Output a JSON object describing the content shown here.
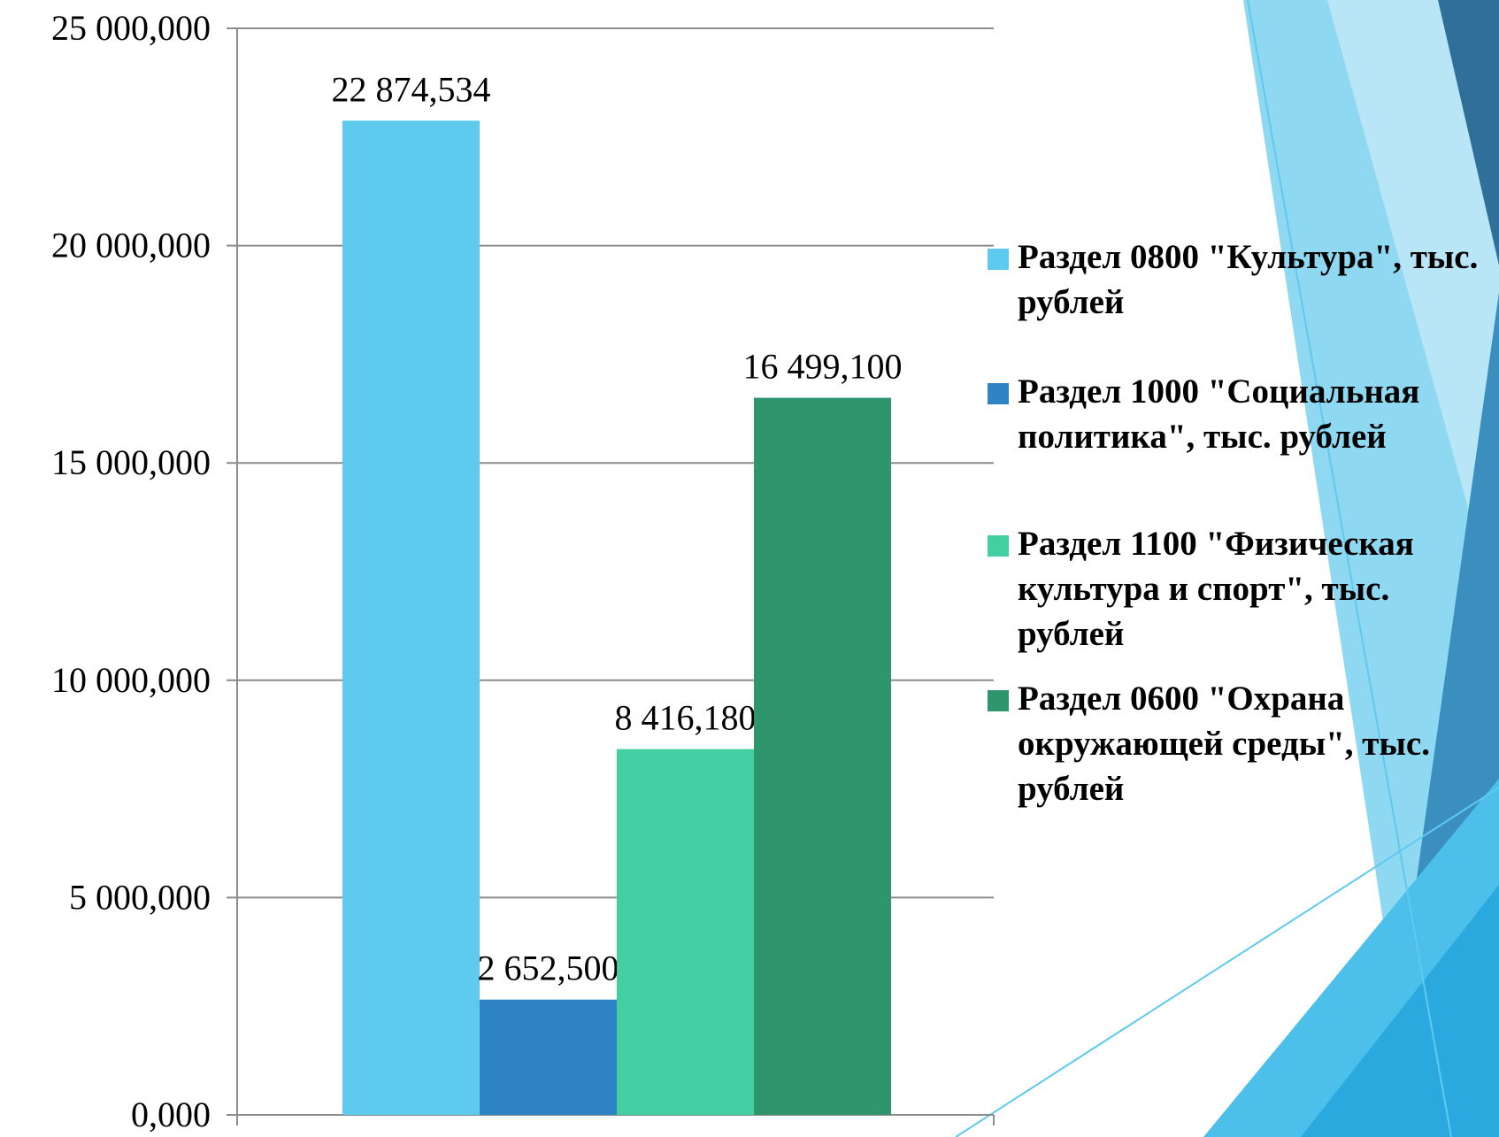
{
  "chart_data": {
    "type": "bar",
    "categories": [
      null
    ],
    "series": [
      {
        "name": "Раздел 0800 \"Культура\", тыс. рублей",
        "color": "#5ecaee",
        "values": [
          22874.534
        ],
        "value_labels": [
          "22 874,534"
        ]
      },
      {
        "name": "Раздел 1000 \"Социальная политика\", тыс. рублей",
        "color": "#2e84c4",
        "values": [
          2652.5
        ],
        "value_labels": [
          "2 652,500"
        ]
      },
      {
        "name": "Раздел 1100 \"Физическая культура и спорт\", тыс. рублей",
        "color": "#43cfa2",
        "values": [
          8416.18
        ],
        "value_labels": [
          "8 416,180"
        ]
      },
      {
        "name": "Раздел 0600 \"Охрана окружающей среды\", тыс. рублей",
        "color": "#2e956c",
        "values": [
          16499.1
        ],
        "value_labels": [
          "16 499,100"
        ]
      }
    ],
    "ylim": [
      0,
      25000
    ],
    "yticks": [
      {
        "value": 0,
        "label": "0,000"
      },
      {
        "value": 5000,
        "label": "5 000,000"
      },
      {
        "value": 10000,
        "label": "10 000,000"
      },
      {
        "value": 15000,
        "label": "15 000,000"
      },
      {
        "value": 20000,
        "label": "20 000,000"
      },
      {
        "value": 25000,
        "label": "25 000,000"
      }
    ],
    "grid": true,
    "legend": "right"
  }
}
